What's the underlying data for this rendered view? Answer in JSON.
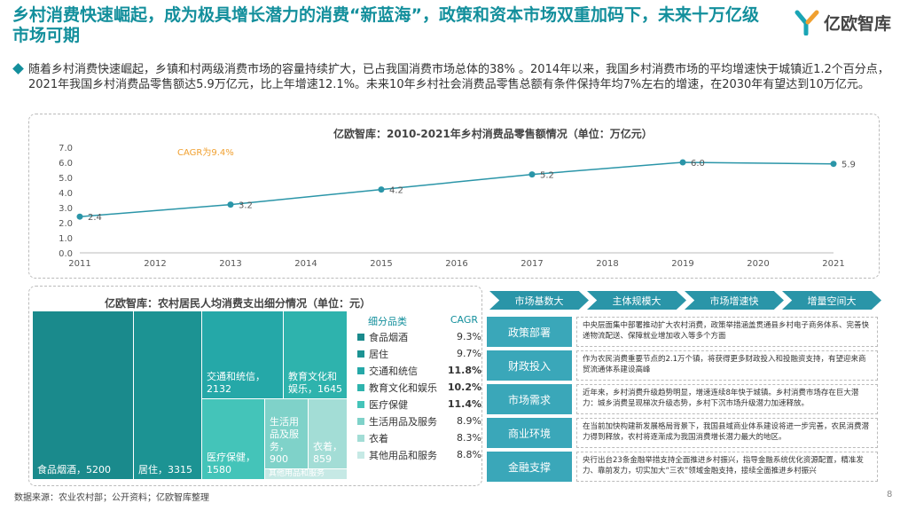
{
  "header": {
    "title": "乡村消费快速崛起，成为极具增长潜力的消费“新蓝海”，政策和资本市场双重加码下，未来十万亿级市场可期",
    "logo_text": "亿欧智库"
  },
  "bullet_text": "随着乡村消费快速崛起，乡镇和村两级消费市场的容量持续扩大，已占我国消费市场总体的38% 。2014年以来，我国乡村消费市场的平均增速快于城镇近1.2个百分点，2021年我国乡村消费品零售额达5.9万亿元，比上年增速12.1%。未来10年乡村社会消费品零售总额有条件保持年均7%左右的增速，在2030年有望达到10万亿元。",
  "chart_data": [
    {
      "type": "line",
      "title": "亿欧智库：2010-2021年乡村消费品零售额情况（单位：万亿元）",
      "annotation": "CAGR为9.4%",
      "x": [
        2011,
        2013,
        2015,
        2017,
        2019,
        2021
      ],
      "x_ticks": [
        "2011",
        "2012",
        "2013",
        "2014",
        "2015",
        "2016",
        "2017",
        "2018",
        "2019",
        "2020",
        "2021"
      ],
      "y_ticks": [
        "0.0",
        "1.0",
        "2.0",
        "3.0",
        "4.0",
        "5.0",
        "6.0",
        "7.0"
      ],
      "ylim": [
        0,
        7
      ],
      "series": [
        {
          "values": [
            2.4,
            3.2,
            4.2,
            5.2,
            6.0,
            5.9
          ],
          "labels": [
            "2.4",
            "3.2",
            "4.2",
            "5.2",
            "6.0",
            "5.9"
          ]
        }
      ],
      "grid": false,
      "color": "#2a95a8"
    },
    {
      "type": "treemap",
      "title": "亿欧智库：农村居民人均消费支出细分情况（单位：元）",
      "legend_header": {
        "category": "细分品类",
        "cagr": "CAGR"
      },
      "items": [
        {
          "name": "食品烟酒",
          "value": 5200,
          "label": "食品烟酒，5200",
          "cagr": "9.3%",
          "bold": false,
          "color": "#1a8a8c"
        },
        {
          "name": "居住",
          "value": 3315,
          "label": "居住，3315",
          "cagr": "9.7%",
          "bold": false,
          "color": "#1c9393"
        },
        {
          "name": "交通和统信",
          "value": 2132,
          "label": "交通和统信，2132",
          "cagr": "11.8%",
          "bold": true,
          "color": "#25a8a8"
        },
        {
          "name": "教育文化和娱乐",
          "value": 1645,
          "label": "教育文化和娱乐，1645",
          "cagr": "10.2%",
          "bold": true,
          "color": "#2eb3ad"
        },
        {
          "name": "医疗保健",
          "value": 1580,
          "label": "医疗保健，1580",
          "cagr": "11.4%",
          "bold": true,
          "color": "#44c4b9"
        },
        {
          "name": "生活用品及服务",
          "value": 900,
          "label": "生活用品及服务，900",
          "cagr": "8.9%",
          "bold": false,
          "color": "#7fd2c9"
        },
        {
          "name": "衣着",
          "value": 859,
          "label": "衣着，859",
          "cagr": "8.3%",
          "bold": false,
          "color": "#a3ddd6"
        },
        {
          "name": "其他用品和服务",
          "value": null,
          "label": "其他用品和服务",
          "cagr": "8.8%",
          "bold": false,
          "color": "#c6e9e5"
        }
      ]
    }
  ],
  "policy_table": {
    "columns": [
      "市场基数大",
      "主体规模大",
      "市场增速快",
      "增量空间大"
    ],
    "rows": [
      {
        "label": "政策部署",
        "text": "中央层面集中部署推动扩大农村消费，政策举措涵盖贯通县乡村电子商务体系、完善快递物流配送、保障就业增加收入等多个方面"
      },
      {
        "label": "财政投入",
        "text": "作为农民消费重要节点的2.1万个镇，将获得更多财政投入和投融资支持，有望迎来商贸流通体系建设高峰"
      },
      {
        "label": "市场需求",
        "text": "近年来，乡村消费升级趋势明显，增速连续8年快于城镇。乡村消费市场存在巨大潜力：城乡消费呈现梯次升级态势，乡村下沉市场升级潜力加速释放。"
      },
      {
        "label": "商业环境",
        "text": "在当前加快构建新发展格局背景下，我国县域商业体系建设将进一步完善，农民消费潜力得到释放，农村将逐渐成为我国消费增长潜力最大的地区。"
      },
      {
        "label": "金融支撑",
        "text": "央行出台23条金融举措支持全面推进乡村振兴，指导金融系统优化资源配置，精准发力、靠前发力，切实加大“三农”领域金融支持，接续全面推进乡村振兴"
      }
    ]
  },
  "footer": {
    "source": "数据来源：农业农村部；公开资料；亿欧智库整理",
    "page": "8"
  },
  "colors": {
    "accent": "#138f9c",
    "line": "#2a95a8",
    "label_box": "#3aa7b9"
  }
}
